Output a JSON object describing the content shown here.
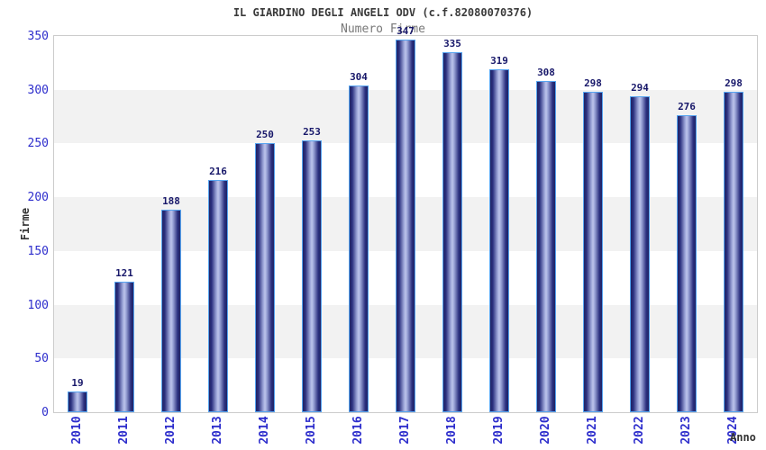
{
  "chart_data": {
    "type": "bar",
    "title": "IL GIARDINO DEGLI ANGELI ODV (c.f.82080070376)",
    "subtitle": "Numero Firme",
    "xlabel": "Anno",
    "ylabel": "Firme",
    "categories": [
      "2010",
      "2011",
      "2012",
      "2013",
      "2014",
      "2015",
      "2016",
      "2017",
      "2018",
      "2019",
      "2020",
      "2021",
      "2022",
      "2023",
      "2024"
    ],
    "values": [
      19,
      121,
      188,
      216,
      250,
      253,
      304,
      347,
      335,
      319,
      308,
      298,
      294,
      276,
      298
    ],
    "ylim": [
      0,
      350
    ],
    "ytick_step": 50,
    "grid": "alternating horizontal bands, no vertical gridlines",
    "legend": "none",
    "bar_value_labels_shown": true,
    "colors": {
      "title": "#3a3a3a",
      "subtitle": "#787878",
      "axis_title": "#333333",
      "tick_label": "#2d2dcc",
      "value_label": "#18186a",
      "plot_border": "#cccccc",
      "band_gray": "#f2f2f2",
      "band_white": "#ffffff",
      "bar_border": "#56a4f0",
      "bar_edge": "#202465",
      "bar_mid": "#2a2f7e",
      "bar_light": "#9aa3d6",
      "bar_center": "#bcc4ec"
    }
  }
}
